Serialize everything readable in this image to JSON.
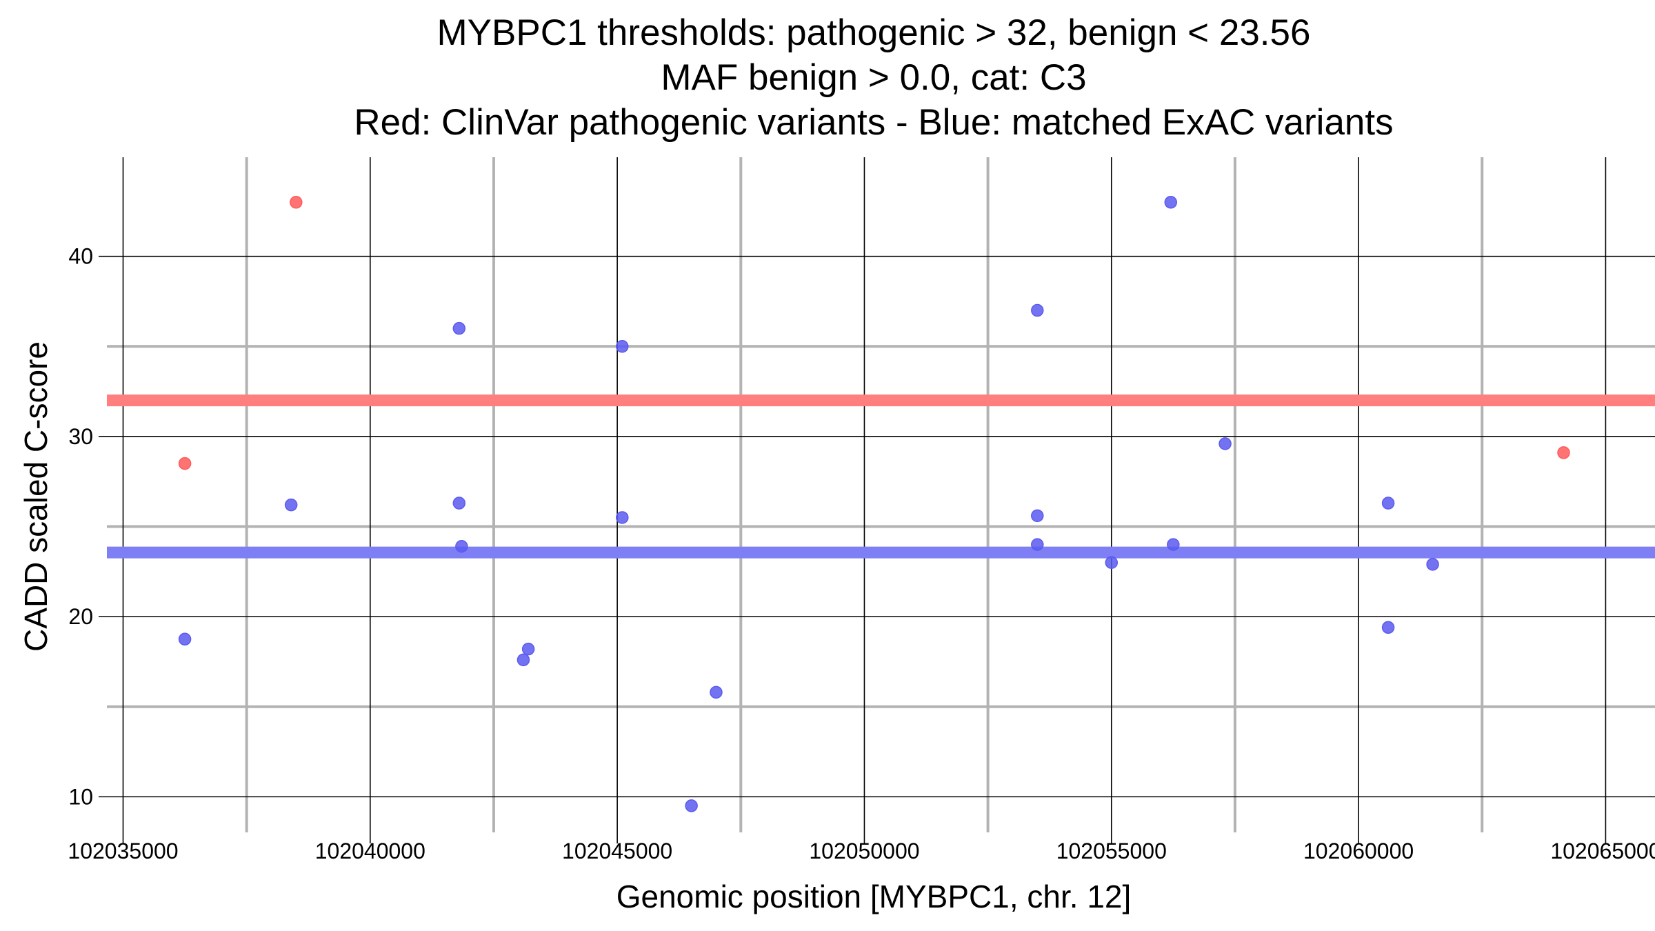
{
  "chart_data": {
    "type": "scatter",
    "title_lines": [
      "MYBPC1 thresholds: pathogenic > 32, benign < 23.56",
      "MAF benign > 0.0, cat: C3",
      "Red: ClinVar pathogenic variants - Blue: matched ExAC variants"
    ],
    "xlabel": "Genomic position [MYBPC1, chr. 12]",
    "ylabel": "CADD scaled C-score",
    "xlim": [
      102034700,
      102065650
    ],
    "ylim": [
      8.1,
      45.5
    ],
    "x_ticks": [
      102035000,
      102040000,
      102045000,
      102050000,
      102055000,
      102060000,
      102065000
    ],
    "x_tick_labels": [
      "102035000",
      "102040000",
      "102045000",
      "102050000",
      "102055000",
      "102060000",
      "102065000"
    ],
    "x_minor_gridlines": [
      102037500,
      102042500,
      102047500,
      102052500,
      102057500,
      102062500
    ],
    "y_ticks": [
      10,
      20,
      30,
      40
    ],
    "y_tick_labels": [
      "10",
      "20",
      "30",
      "40"
    ],
    "y_minor_gridlines": [
      15,
      25,
      35
    ],
    "grid": true,
    "legend": "none",
    "thresholds": [
      {
        "name": "pathogenic",
        "value": 32,
        "color": "#ff7f7f"
      },
      {
        "name": "benign",
        "value": 23.56,
        "color": "#7f7ff5"
      }
    ],
    "series": [
      {
        "color": "#ff5a5a",
        "points": [
          {
            "x": 102036250,
            "y": 28.5
          },
          {
            "x": 102038500,
            "y": 43.0
          },
          {
            "x": 102064150,
            "y": 29.1
          }
        ]
      },
      {
        "color": "#5a5af0",
        "points": [
          {
            "x": 102036250,
            "y": 18.75
          },
          {
            "x": 102038400,
            "y": 26.2
          },
          {
            "x": 102041800,
            "y": 36.0
          },
          {
            "x": 102041800,
            "y": 26.3
          },
          {
            "x": 102041850,
            "y": 23.9
          },
          {
            "x": 102043100,
            "y": 17.6
          },
          {
            "x": 102043200,
            "y": 18.2
          },
          {
            "x": 102045100,
            "y": 35.0
          },
          {
            "x": 102045100,
            "y": 25.5
          },
          {
            "x": 102046500,
            "y": 9.5
          },
          {
            "x": 102047000,
            "y": 15.8
          },
          {
            "x": 102053500,
            "y": 37.0
          },
          {
            "x": 102053500,
            "y": 25.6
          },
          {
            "x": 102053500,
            "y": 24.0
          },
          {
            "x": 102055000,
            "y": 23.0
          },
          {
            "x": 102056200,
            "y": 43.0
          },
          {
            "x": 102056250,
            "y": 24.0
          },
          {
            "x": 102057300,
            "y": 29.6
          },
          {
            "x": 102060600,
            "y": 26.3
          },
          {
            "x": 102060600,
            "y": 19.4
          },
          {
            "x": 102061500,
            "y": 22.9
          }
        ]
      }
    ]
  }
}
